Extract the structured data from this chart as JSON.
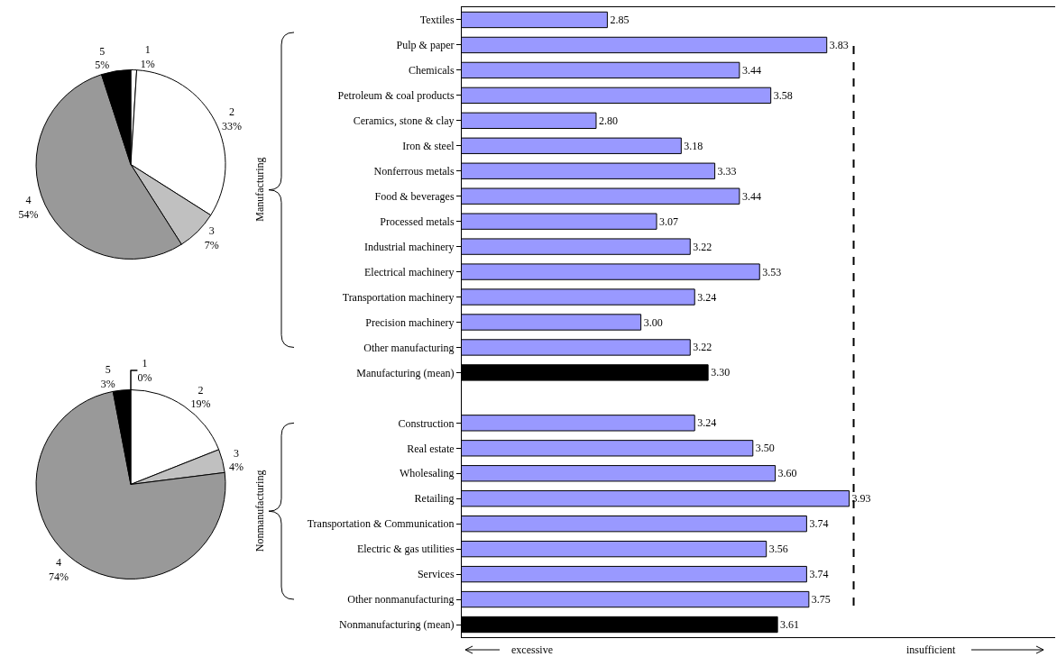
{
  "chart_data": [
    {
      "type": "pie",
      "categories": [
        "1",
        "2",
        "3",
        "4",
        "5"
      ],
      "values": [
        1,
        33,
        7,
        54,
        5
      ],
      "value_labels": [
        "1%",
        "33%",
        "7%",
        "54%",
        "5%"
      ],
      "colors": [
        "#ffffff",
        "#ffffff",
        "#c0c0c0",
        "#999999",
        "#000000"
      ]
    },
    {
      "type": "pie",
      "categories": [
        "1",
        "2",
        "3",
        "4",
        "5"
      ],
      "values": [
        0,
        19,
        4,
        74,
        3
      ],
      "value_labels": [
        "0%",
        "19%",
        "4%",
        "74%",
        "3%"
      ],
      "colors": [
        "#ffffff",
        "#ffffff",
        "#c0c0c0",
        "#999999",
        "#000000"
      ]
    },
    {
      "type": "bar",
      "orientation": "horizontal",
      "categories": [
        "Textiles",
        "Pulp & paper",
        "Chemicals",
        "Petroleum & coal products",
        "Ceramics, stone & clay",
        "Iron & steel",
        "Nonferrous metals",
        "Food & beverages",
        "Processed metals",
        "Industrial machinery",
        "Electrical machinery",
        "Transportation machinery",
        "Precision machinery",
        "Other manufacturing",
        "Manufacturing (mean)",
        null,
        "Construction",
        "Real estate",
        "Wholesaling",
        "Retailing",
        "Transportation & Communication",
        "Electric & gas utilities",
        "Services",
        "Other nonmanufacturing",
        "Nonmanufacturing (mean)"
      ],
      "values": [
        2.85,
        3.83,
        3.44,
        3.58,
        2.8,
        3.18,
        3.33,
        3.44,
        3.07,
        3.22,
        3.53,
        3.24,
        3.0,
        3.22,
        3.3,
        null,
        3.24,
        3.5,
        3.6,
        3.93,
        3.74,
        3.56,
        3.74,
        3.75,
        3.61
      ],
      "value_labels": [
        "2.85",
        "3.83",
        "3.44",
        "3.58",
        "2.80",
        "3.18",
        "3.33",
        "3.44",
        "3.07",
        "3.22",
        "3.53",
        "3.24",
        "3.00",
        "3.22",
        "3.30",
        null,
        "3.24",
        "3.50",
        "3.60",
        "3.93",
        "3.74",
        "3.56",
        "3.74",
        "3.75",
        "3.61"
      ],
      "colors": [
        "#9999ff",
        "#9999ff",
        "#9999ff",
        "#9999ff",
        "#9999ff",
        "#9999ff",
        "#9999ff",
        "#9999ff",
        "#9999ff",
        "#9999ff",
        "#9999ff",
        "#9999ff",
        "#9999ff",
        "#9999ff",
        "#000000",
        null,
        "#9999ff",
        "#9999ff",
        "#9999ff",
        "#9999ff",
        "#9999ff",
        "#9999ff",
        "#9999ff",
        "#9999ff",
        "#000000"
      ],
      "xlim": [
        2.2,
        4.85
      ],
      "tick_labels": "y",
      "grid": false,
      "ref_lines": [
        {
          "axis": "x",
          "value": 3.95,
          "line_style": "dashed",
          "color": "#000000"
        }
      ],
      "annotations": [
        "Manufacturing",
        "Nonmanufacturing",
        "excessive",
        "insufficient"
      ]
    }
  ]
}
